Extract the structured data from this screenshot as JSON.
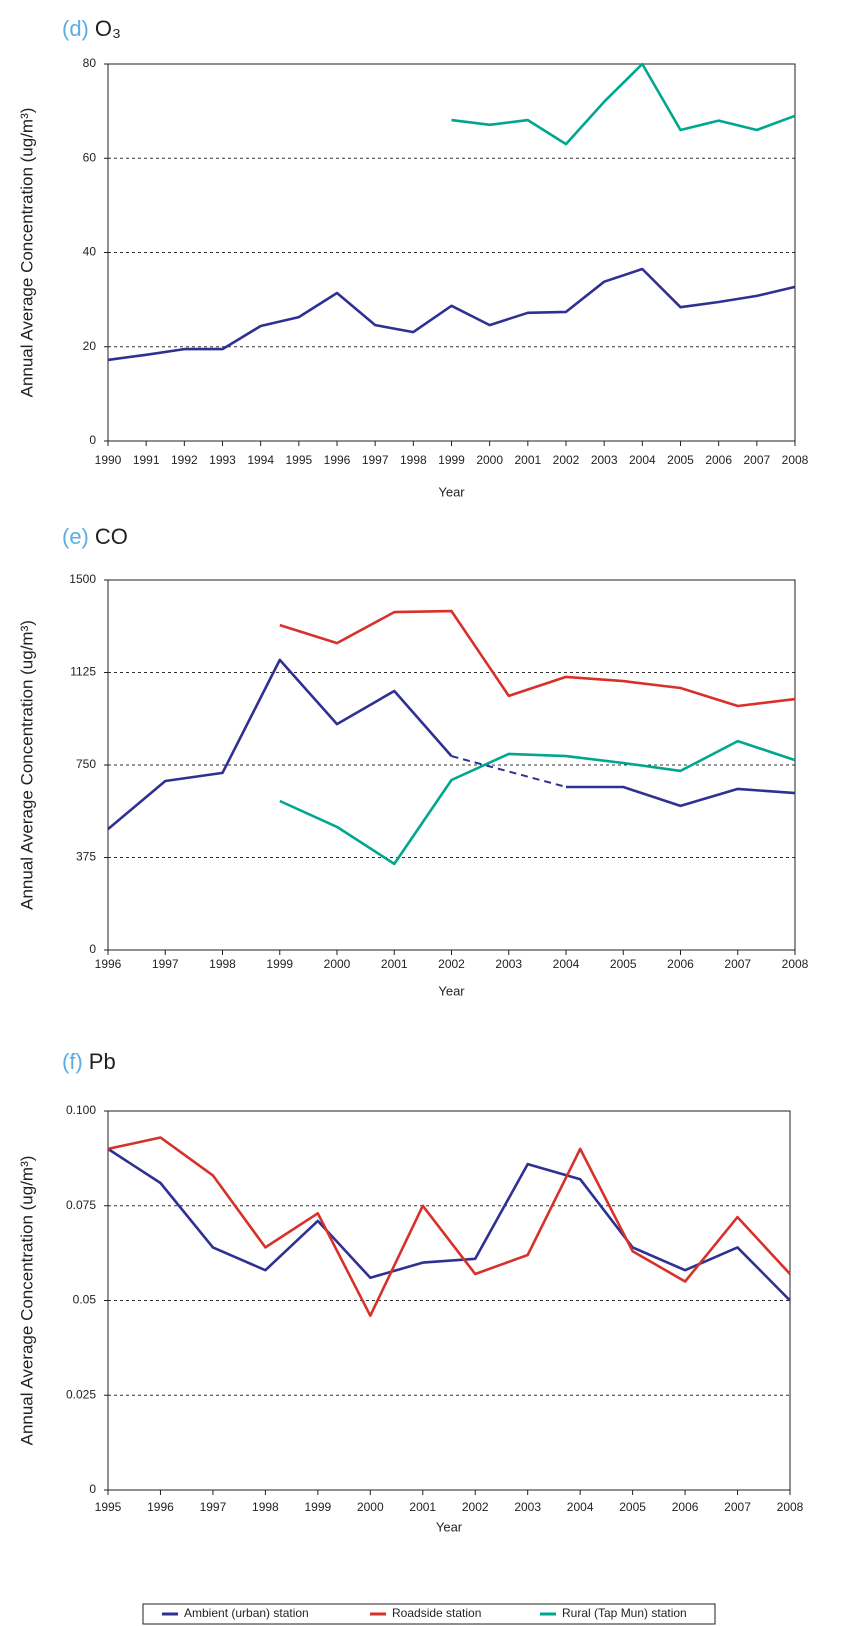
{
  "chart_data": [
    {
      "type": "line",
      "panel": "(d)",
      "title": "O₃",
      "y_label": "Annual Average Concentration (ug/m³)",
      "x_label": "Year",
      "categories": [
        "1990",
        "1991",
        "1992",
        "1993",
        "1994",
        "1995",
        "1996",
        "1997",
        "1998",
        "1999",
        "2000",
        "2001",
        "2002",
        "2003",
        "2004",
        "2005",
        "2006",
        "2007",
        "2008"
      ],
      "series": [
        {
          "name": "Ambient (urban) station",
          "color": "#2e3192",
          "values": [
            17.2,
            18.3,
            19.5,
            19.5,
            24.4,
            26.3,
            31.4,
            24.6,
            23.1,
            28.7,
            24.6,
            27.2,
            27.4,
            33.8,
            36.5,
            28.4,
            29.5,
            30.8,
            32.7
          ]
        },
        {
          "name": "Rural (Tap Mun) station",
          "color": "#00a78e",
          "values": [
            null,
            null,
            null,
            null,
            null,
            null,
            null,
            null,
            null,
            68.1,
            67.1,
            68.1,
            63,
            72,
            80,
            66,
            68,
            66,
            69
          ]
        }
      ],
      "ylim": [
        0,
        80
      ],
      "yticks": [
        0,
        20,
        40,
        60,
        80
      ],
      "grid": true
    },
    {
      "type": "line",
      "panel": "(e)",
      "title": "CO",
      "y_label": "Annual Average Concentration (ug/m³)",
      "x_label": "Year",
      "categories": [
        "1996",
        "1997",
        "1998",
        "1999",
        "2000",
        "2001",
        "2002",
        "2003",
        "2004",
        "2005",
        "2006",
        "2007",
        "2008"
      ],
      "series": [
        {
          "name": "Ambient (urban) station",
          "color": "#2e3192",
          "values": [
            490,
            685,
            718,
            1176,
            916,
            1050,
            786,
            null,
            661,
            661,
            584,
            653,
            636
          ]
        },
        {
          "name": "Roadside station",
          "color": "#d7312a",
          "values": [
            null,
            null,
            null,
            1317,
            1244,
            1370,
            1374,
            1030,
            1107,
            1090,
            1062,
            989,
            1017
          ]
        },
        {
          "name": "Rural (Tap Mun) station",
          "color": "#00a78e",
          "values": [
            null,
            null,
            null,
            604,
            499,
            349,
            689,
            795,
            786,
            758,
            726,
            847,
            770
          ]
        }
      ],
      "gap_style": "dashed",
      "ylim": [
        0,
        1500
      ],
      "yticks": [
        0,
        375,
        750,
        1125,
        1500
      ],
      "grid": true,
      "legend": "bottom"
    },
    {
      "type": "line",
      "panel": "(f)",
      "title": "Pb",
      "y_label": "Annual Average Concentration (ug/m³)",
      "x_label": "Year",
      "categories": [
        "1995",
        "1996",
        "1997",
        "1998",
        "1999",
        "2000",
        "2001",
        "2002",
        "2003",
        "2004",
        "2005",
        "2006",
        "2007",
        "2008"
      ],
      "series": [
        {
          "name": "Ambient (urban) station",
          "color": "#2e3192",
          "values": [
            0.09,
            0.081,
            0.064,
            0.058,
            0.071,
            0.056,
            0.06,
            0.061,
            0.086,
            0.082,
            0.064,
            0.058,
            0.064,
            0.05
          ]
        },
        {
          "name": "Roadside station",
          "color": "#d7312a",
          "values": [
            0.09,
            0.093,
            0.083,
            0.064,
            0.073,
            0.046,
            0.075,
            0.057,
            0.062,
            0.09,
            0.063,
            0.055,
            0.072,
            0.057
          ]
        }
      ],
      "ylim": [
        0,
        0.1
      ],
      "yticks": [
        0,
        0.025,
        0.05,
        0.075,
        {
          "value": 0.1,
          "label": "0.100"
        }
      ],
      "grid": true
    }
  ]
}
